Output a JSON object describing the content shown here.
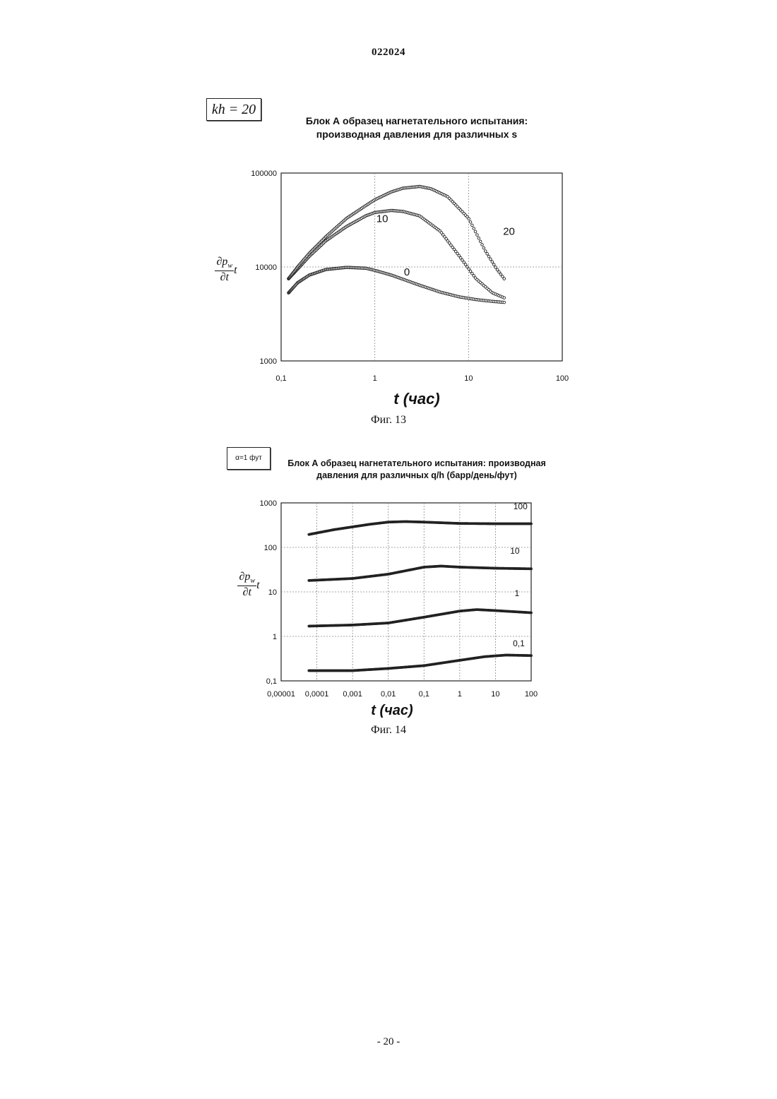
{
  "document": {
    "number": "022024",
    "page": "- 20 -"
  },
  "figures": [
    {
      "caption": "Фиг. 13",
      "inset": "kh = 20",
      "title_line1": "Блок А образец нагнетательного испытания:",
      "title_line2": "производная давления для различных s",
      "ylabel_num": "∂p",
      "ylabel_sub": "w",
      "ylabel_t": "t",
      "ylabel_den": "∂t",
      "xlabel": "t (час)"
    },
    {
      "caption": "Фиг. 14",
      "inset": "α=1 фут",
      "title_line1": "Блок А образец нагнетательного испытания: производная",
      "title_line2": "давления для различных q/h (барр/день/фут)",
      "ylabel_num": "∂p",
      "ylabel_sub": "w",
      "ylabel_t": "t",
      "ylabel_den": "∂t",
      "xlabel": "t (час)"
    }
  ],
  "chart_data": [
    {
      "type": "scatter",
      "xscale": "log",
      "yscale": "log",
      "xlim": [
        0.1,
        100
      ],
      "ylim": [
        1000,
        100000
      ],
      "xticks": [
        "0,1",
        "1",
        "10",
        "100"
      ],
      "yticks": [
        "1000",
        "10000",
        "100000"
      ],
      "grid": true,
      "series": [
        {
          "name": "0",
          "label_at": [
            2.2,
            8100
          ],
          "points": [
            [
              0.12,
              5300
            ],
            [
              0.15,
              6800
            ],
            [
              0.2,
              8200
            ],
            [
              0.3,
              9400
            ],
            [
              0.5,
              9900
            ],
            [
              0.8,
              9700
            ],
            [
              1,
              9200
            ],
            [
              1.5,
              8200
            ],
            [
              2,
              7400
            ],
            [
              3,
              6400
            ],
            [
              5,
              5400
            ],
            [
              8,
              4800
            ],
            [
              12,
              4500
            ],
            [
              18,
              4300
            ],
            [
              24,
              4200
            ]
          ]
        },
        {
          "name": "10",
          "label_at": [
            1.2,
            30000
          ],
          "points": [
            [
              0.12,
              7500
            ],
            [
              0.15,
              9500
            ],
            [
              0.2,
              13000
            ],
            [
              0.3,
              19000
            ],
            [
              0.5,
              27000
            ],
            [
              0.8,
              35000
            ],
            [
              1,
              38000
            ],
            [
              1.5,
              40000
            ],
            [
              2,
              39000
            ],
            [
              3,
              35000
            ],
            [
              5,
              24000
            ],
            [
              8,
              13000
            ],
            [
              12,
              7500
            ],
            [
              18,
              5300
            ],
            [
              24,
              4700
            ]
          ]
        },
        {
          "name": "20",
          "label_at": [
            27,
            22000
          ],
          "points": [
            [
              0.12,
              7500
            ],
            [
              0.15,
              10000
            ],
            [
              0.2,
              14000
            ],
            [
              0.3,
              21000
            ],
            [
              0.5,
              33000
            ],
            [
              0.8,
              45000
            ],
            [
              1,
              52000
            ],
            [
              1.5,
              63000
            ],
            [
              2,
              69000
            ],
            [
              3,
              72000
            ],
            [
              4,
              68000
            ],
            [
              6,
              56000
            ],
            [
              10,
              33000
            ],
            [
              15,
              15000
            ],
            [
              20,
              9500
            ],
            [
              24,
              7500
            ]
          ]
        }
      ]
    },
    {
      "type": "scatter",
      "xscale": "log",
      "yscale": "log",
      "xlim": [
        1e-05,
        100
      ],
      "ylim": [
        0.1,
        1000
      ],
      "xticks": [
        "0,00001",
        "0,0001",
        "0,001",
        "0,01",
        "0,1",
        "1",
        "10",
        "100"
      ],
      "yticks": [
        "0,1",
        "1",
        "10",
        "100",
        "1000"
      ],
      "grid": true,
      "series": [
        {
          "name": "100",
          "label_at": [
            50,
            720
          ],
          "points": [
            [
              6e-05,
              195
            ],
            [
              0.0003,
              250
            ],
            [
              0.003,
              330
            ],
            [
              0.01,
              370
            ],
            [
              0.03,
              380
            ],
            [
              0.1,
              370
            ],
            [
              1,
              345
            ],
            [
              10,
              340
            ],
            [
              100,
              340
            ]
          ]
        },
        {
          "name": "10",
          "label_at": [
            35,
            72
          ],
          "points": [
            [
              6e-05,
              18
            ],
            [
              0.001,
              20
            ],
            [
              0.01,
              25
            ],
            [
              0.1,
              36
            ],
            [
              0.3,
              38
            ],
            [
              1,
              36
            ],
            [
              10,
              34
            ],
            [
              100,
              33
            ]
          ]
        },
        {
          "name": "1",
          "label_at": [
            40,
            8
          ],
          "points": [
            [
              6e-05,
              1.7
            ],
            [
              0.001,
              1.8
            ],
            [
              0.01,
              2.0
            ],
            [
              0.1,
              2.7
            ],
            [
              1,
              3.7
            ],
            [
              3,
              4.0
            ],
            [
              10,
              3.8
            ],
            [
              100,
              3.4
            ]
          ]
        },
        {
          "name": "0,1",
          "label_at": [
            45,
            0.6
          ],
          "points": [
            [
              6e-05,
              0.17
            ],
            [
              0.001,
              0.17
            ],
            [
              0.01,
              0.19
            ],
            [
              0.1,
              0.22
            ],
            [
              1,
              0.29
            ],
            [
              5,
              0.35
            ],
            [
              20,
              0.38
            ],
            [
              100,
              0.37
            ]
          ]
        }
      ]
    }
  ]
}
